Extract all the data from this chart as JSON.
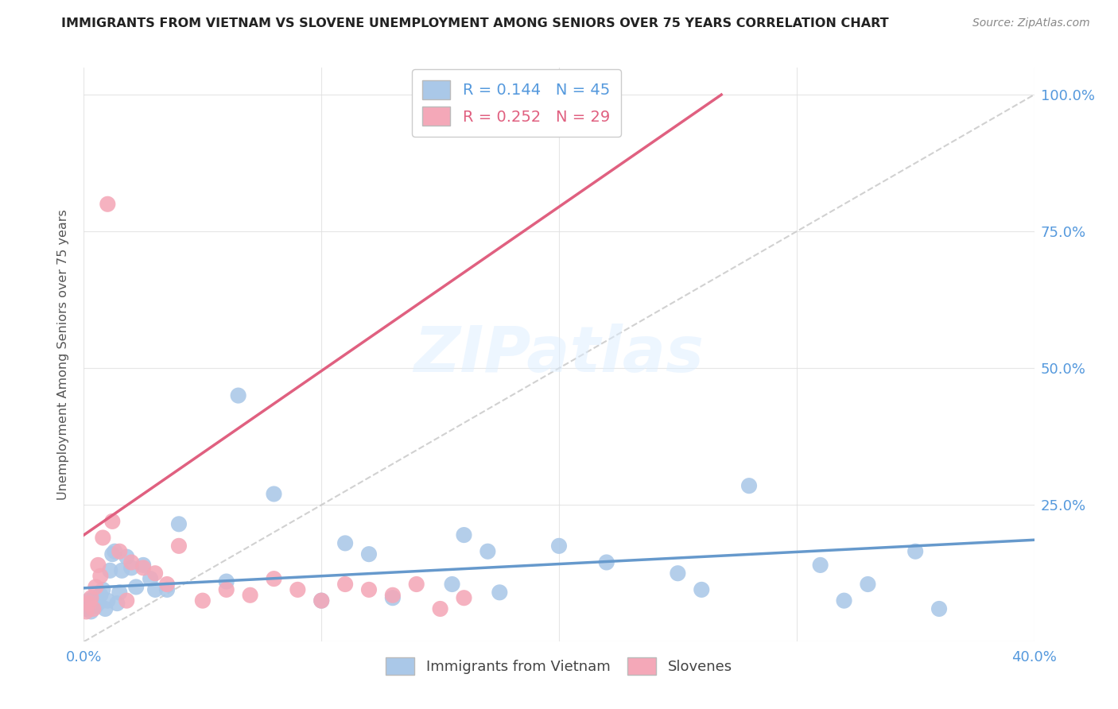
{
  "title": "IMMIGRANTS FROM VIETNAM VS SLOVENE UNEMPLOYMENT AMONG SENIORS OVER 75 YEARS CORRELATION CHART",
  "source": "Source: ZipAtlas.com",
  "ylabel": "Unemployment Among Seniors over 75 years",
  "xlim": [
    0.0,
    0.4
  ],
  "ylim": [
    0.0,
    1.05
  ],
  "legend_blue_r": "0.144",
  "legend_blue_n": "45",
  "legend_pink_r": "0.252",
  "legend_pink_n": "29",
  "legend_label_blue": "Immigrants from Vietnam",
  "legend_label_pink": "Slovenes",
  "blue_color": "#aac8e8",
  "pink_color": "#f4a8b8",
  "blue_line_color": "#6699cc",
  "pink_line_color": "#e06080",
  "diagonal_color": "#cccccc",
  "background_color": "#ffffff",
  "title_color": "#222222",
  "axis_label_color": "#5599dd",
  "vietnam_x": [
    0.001,
    0.002,
    0.003,
    0.004,
    0.005,
    0.006,
    0.007,
    0.008,
    0.009,
    0.01,
    0.011,
    0.012,
    0.013,
    0.014,
    0.015,
    0.016,
    0.018,
    0.02,
    0.022,
    0.025,
    0.028,
    0.03,
    0.035,
    0.04,
    0.06,
    0.065,
    0.08,
    0.1,
    0.11,
    0.12,
    0.13,
    0.155,
    0.16,
    0.17,
    0.175,
    0.2,
    0.22,
    0.25,
    0.26,
    0.28,
    0.31,
    0.32,
    0.33,
    0.35,
    0.36
  ],
  "vietnam_y": [
    0.06,
    0.075,
    0.055,
    0.08,
    0.065,
    0.07,
    0.085,
    0.095,
    0.06,
    0.075,
    0.13,
    0.16,
    0.165,
    0.07,
    0.09,
    0.13,
    0.155,
    0.135,
    0.1,
    0.14,
    0.115,
    0.095,
    0.095,
    0.215,
    0.11,
    0.45,
    0.27,
    0.075,
    0.18,
    0.16,
    0.08,
    0.105,
    0.195,
    0.165,
    0.09,
    0.175,
    0.145,
    0.125,
    0.095,
    0.285,
    0.14,
    0.075,
    0.105,
    0.165,
    0.06
  ],
  "slovene_x": [
    0.001,
    0.002,
    0.003,
    0.004,
    0.005,
    0.006,
    0.007,
    0.008,
    0.01,
    0.012,
    0.015,
    0.018,
    0.02,
    0.025,
    0.03,
    0.035,
    0.04,
    0.05,
    0.06,
    0.07,
    0.08,
    0.09,
    0.1,
    0.11,
    0.12,
    0.13,
    0.14,
    0.15,
    0.16
  ],
  "slovene_y": [
    0.055,
    0.07,
    0.08,
    0.06,
    0.1,
    0.14,
    0.12,
    0.19,
    0.8,
    0.22,
    0.165,
    0.075,
    0.145,
    0.135,
    0.125,
    0.105,
    0.175,
    0.075,
    0.095,
    0.085,
    0.115,
    0.095,
    0.075,
    0.105,
    0.095,
    0.085,
    0.105,
    0.06,
    0.08
  ],
  "blue_slope": 0.22,
  "blue_intercept": 0.098,
  "pink_slope": 3.0,
  "pink_intercept": 0.195,
  "diag_slope": 2.5,
  "diag_intercept": 0.0
}
